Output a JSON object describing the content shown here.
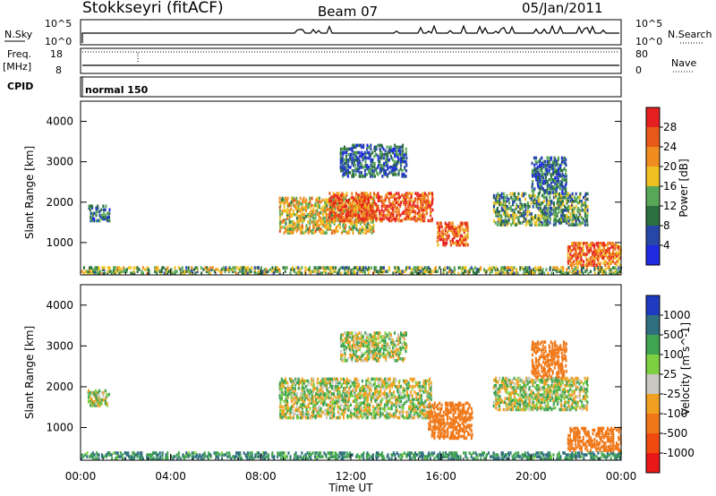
{
  "header": {
    "station": "Stokkseyri (fitACF)",
    "beam": "Beam 07",
    "date": "05/Jan/2011"
  },
  "strips": {
    "nsky": {
      "left_label": "N.Sky",
      "left_ticks": [
        "10^5",
        "10^0"
      ],
      "right_ticks": [
        "10^5",
        "10^0"
      ],
      "right_label": "N.Search",
      "right_label_style": "dotted"
    },
    "freq": {
      "left_label": "Freq.",
      "left_unit": "[MHz]",
      "left_ticks": [
        "18",
        "8"
      ],
      "right_ticks": [
        "80",
        "0"
      ],
      "right_label": "Nave",
      "right_label_style": "dotted"
    },
    "cpid": {
      "label": "CPID",
      "program": "normal 150"
    }
  },
  "axes": {
    "x_label": "Time UT",
    "x_ticks": [
      "00:00",
      "04:00",
      "08:00",
      "12:00",
      "16:00",
      "20:00",
      "00:00"
    ],
    "y_label": "Slant Range [km]",
    "y_ticks": [
      "1000",
      "2000",
      "3000",
      "4000"
    ]
  },
  "colorbars": {
    "power": {
      "label": "Power [dB]",
      "ticks": [
        "4",
        "8",
        "12",
        "16",
        "20",
        "24",
        "28"
      ],
      "colors": [
        "#1f2ae0",
        "#2747a8",
        "#2c7040",
        "#58a858",
        "#f0c020",
        "#f08c20",
        "#e85818",
        "#e62020"
      ]
    },
    "velocity": {
      "label": "Velocity [m s^-1]",
      "ticks": [
        "1000",
        "500",
        "100",
        "25",
        "-25",
        "-100",
        "-500",
        "-1000"
      ],
      "colors": [
        "#1f3cc0",
        "#2f6f7f",
        "#3fa34f",
        "#7fd040",
        "#c8c8c0",
        "#f0a020",
        "#f07818",
        "#f04a10",
        "#e81818"
      ]
    }
  },
  "chart_data": [
    {
      "type": "heatmap",
      "title": "Power",
      "xlabel": "Time UT",
      "ylabel": "Slant Range [km]",
      "xlim": [
        "00:00",
        "24:00"
      ],
      "ylim": [
        200,
        4500
      ],
      "colorbar": {
        "label": "Power [dB]",
        "range": [
          0,
          30
        ]
      },
      "features": [
        {
          "t_start": 0.0,
          "t_end": 24.0,
          "range_start": 200,
          "range_end": 400,
          "value": 14
        },
        {
          "t_start": 0.3,
          "t_end": 1.3,
          "range_start": 1500,
          "range_end": 1900,
          "value": 8
        },
        {
          "t_start": 8.8,
          "t_end": 13.0,
          "range_start": 1200,
          "range_end": 2100,
          "value": 18
        },
        {
          "t_start": 11.0,
          "t_end": 15.6,
          "range_start": 1500,
          "range_end": 2200,
          "value": 26
        },
        {
          "t_start": 11.5,
          "t_end": 14.5,
          "range_start": 2600,
          "range_end": 3400,
          "value": 8
        },
        {
          "t_start": 15.8,
          "t_end": 17.2,
          "range_start": 900,
          "range_end": 1500,
          "value": 26
        },
        {
          "t_start": 18.3,
          "t_end": 22.5,
          "range_start": 1400,
          "range_end": 2200,
          "value": 12
        },
        {
          "t_start": 20.0,
          "t_end": 21.6,
          "range_start": 2200,
          "range_end": 3100,
          "value": 8
        },
        {
          "t_start": 21.6,
          "t_end": 24.0,
          "range_start": 400,
          "range_end": 1000,
          "value": 24
        }
      ]
    },
    {
      "type": "heatmap",
      "title": "Velocity",
      "xlabel": "Time UT",
      "ylabel": "Slant Range [km]",
      "xlim": [
        "00:00",
        "24:00"
      ],
      "ylim": [
        200,
        4500
      ],
      "colorbar": {
        "label": "Velocity [m s^-1]",
        "range": [
          -1000,
          1000
        ]
      },
      "features": [
        {
          "t_start": 0.0,
          "t_end": 24.0,
          "range_start": 200,
          "range_end": 400,
          "value": 100
        },
        {
          "t_start": 0.3,
          "t_end": 1.3,
          "range_start": 1500,
          "range_end": 1900,
          "value": 0
        },
        {
          "t_start": 8.8,
          "t_end": 15.6,
          "range_start": 1200,
          "range_end": 2200,
          "value": 0
        },
        {
          "t_start": 11.5,
          "t_end": 14.5,
          "range_start": 2600,
          "range_end": 3300,
          "value": 0
        },
        {
          "t_start": 15.4,
          "t_end": 17.4,
          "range_start": 700,
          "range_end": 1600,
          "value": -300
        },
        {
          "t_start": 18.3,
          "t_end": 22.5,
          "range_start": 1400,
          "range_end": 2200,
          "value": 0
        },
        {
          "t_start": 20.0,
          "t_end": 21.6,
          "range_start": 2200,
          "range_end": 3100,
          "value": -300
        },
        {
          "t_start": 21.6,
          "t_end": 24.0,
          "range_start": 400,
          "range_end": 1000,
          "value": -200
        }
      ]
    }
  ]
}
